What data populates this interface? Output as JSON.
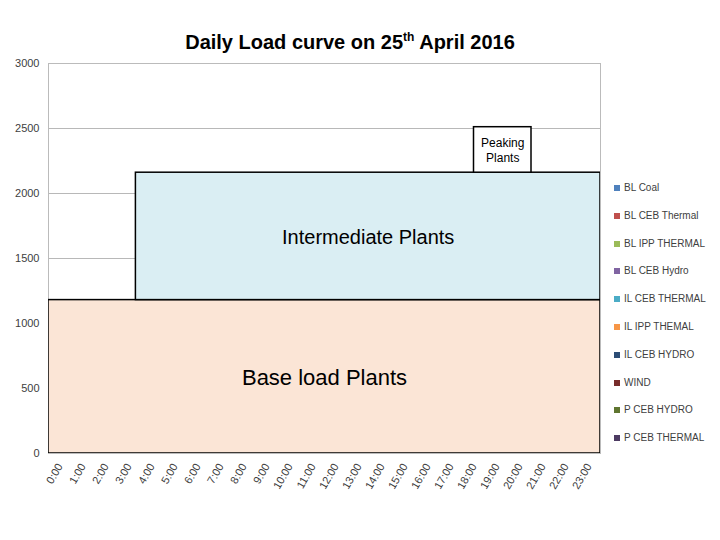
{
  "chart_data": {
    "type": "area",
    "title": "Daily Load curve on 25th April 2016",
    "xlim": [
      -0.5,
      23.5
    ],
    "xticks": [
      {
        "value": 0,
        "label": "0:00"
      },
      {
        "value": 1,
        "label": "1:00"
      },
      {
        "value": 2,
        "label": "2:00"
      },
      {
        "value": 3,
        "label": "3:00"
      },
      {
        "value": 4,
        "label": "4:00"
      },
      {
        "value": 5,
        "label": "5:00"
      },
      {
        "value": 6,
        "label": "6:00"
      },
      {
        "value": 7,
        "label": "7:00"
      },
      {
        "value": 8,
        "label": "8:00"
      },
      {
        "value": 9,
        "label": "9:00"
      },
      {
        "value": 10,
        "label": "10:00"
      },
      {
        "value": 11,
        "label": "11:00"
      },
      {
        "value": 12,
        "label": "12:00"
      },
      {
        "value": 13,
        "label": "13:00"
      },
      {
        "value": 14,
        "label": "14:00"
      },
      {
        "value": 15,
        "label": "15:00"
      },
      {
        "value": 16,
        "label": "16:00"
      },
      {
        "value": 17,
        "label": "17:00"
      },
      {
        "value": 18,
        "label": "18:00"
      },
      {
        "value": 19,
        "label": "19:00"
      },
      {
        "value": 20,
        "label": "20:00"
      },
      {
        "value": 21,
        "label": "21:00"
      },
      {
        "value": 22,
        "label": "22:00"
      },
      {
        "value": 23,
        "label": "23:00"
      }
    ],
    "ylim": [
      0,
      3000
    ],
    "yticks": [
      0,
      500,
      1000,
      1500,
      2000,
      2500,
      3000
    ],
    "grid": true,
    "legend": "right",
    "series": [
      {
        "name": "BL Coal",
        "color": "#4f81bd"
      },
      {
        "name": "BL CEB Thermal",
        "color": "#c0504d"
      },
      {
        "name": "BL IPP THERMAL",
        "color": "#9bbb59"
      },
      {
        "name": "BL CEB Hydro",
        "color": "#8064a2"
      },
      {
        "name": "IL CEB THERMAL",
        "color": "#4bacc6"
      },
      {
        "name": "IL IPP THEMAL",
        "color": "#f79646"
      },
      {
        "name": "IL CEB HYDRO",
        "color": "#2c4d75"
      },
      {
        "name": "WIND",
        "color": "#772c2a"
      },
      {
        "name": "P CEB HYDRO",
        "color": "#5f7530"
      },
      {
        "name": "P CEB THERMAL",
        "color": "#4d3b62"
      }
    ],
    "annotations": [
      {
        "text": "Base load Plants",
        "x": [
          -0.5,
          23.5
        ],
        "y": [
          0,
          1180
        ],
        "color": "#fbe5d6"
      },
      {
        "text": "Intermediate Plants",
        "x": [
          3.3,
          23.5
        ],
        "y": [
          1180,
          2160
        ],
        "color": "#daeef3"
      },
      {
        "text": "Peaking Plants",
        "x": [
          18.0,
          20.5
        ],
        "y": [
          2160,
          2510
        ],
        "color": "#ffffff"
      }
    ]
  }
}
